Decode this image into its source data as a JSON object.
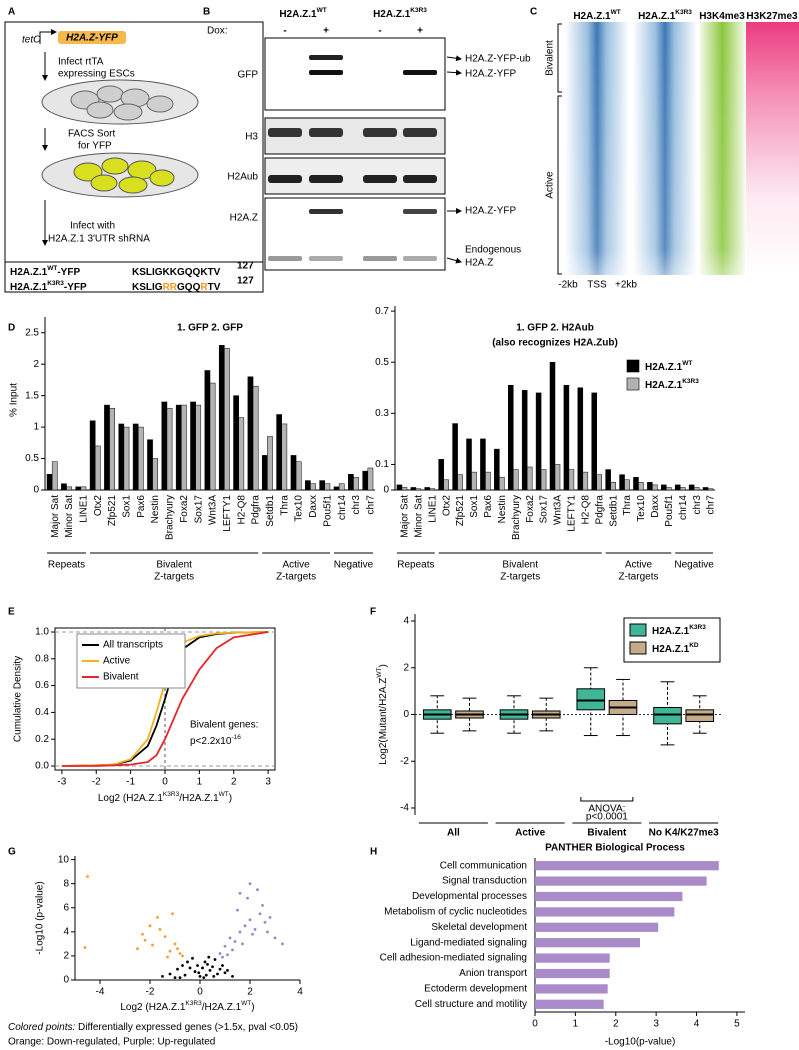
{
  "panel_labels": [
    "A",
    "B",
    "C",
    "D",
    "E",
    "F",
    "G",
    "H"
  ],
  "schematic": {
    "promoter": "tetO",
    "construct": "H2A.Z-YFP",
    "step1": [
      "Infect rtTA",
      "expressing ESCs"
    ],
    "step2": [
      "FACS Sort",
      "for YFP"
    ],
    "step3": [
      "Infect with",
      "H2A.Z.1 3'UTR shRNA"
    ],
    "seq_rows": [
      {
        "label": [
          "H2A.Z.1",
          "WT",
          "-YFP"
        ],
        "sequence": [
          "KSLIGKKGQQKTV"
        ],
        "position": 127
      },
      {
        "label": [
          "H2A.Z.1",
          "K3R3",
          "-YFP"
        ],
        "sequence": [
          "KSLIG",
          "RR",
          "GQQ",
          "R",
          "TV"
        ],
        "position": 127
      }
    ]
  },
  "blot": {
    "groups": [
      [
        "H2A.Z.1",
        "WT"
      ],
      [
        "H2A.Z.1",
        "K3R3"
      ]
    ],
    "dox_label": "Dox:",
    "dox": [
      "-",
      "+",
      "-",
      "+"
    ],
    "rows": [
      "GFP",
      "H3",
      "H2Aub",
      "H2A.Z"
    ],
    "band_labels": [
      "H2A.Z-YFP-ub",
      "H2A.Z-YFP",
      "H2A.Z-YFP",
      [
        "Endogenous",
        "H2A.Z"
      ]
    ]
  },
  "heatmap": {
    "columns": [
      [
        "H2A.Z.1",
        "WT"
      ],
      [
        "H2A.Z.1",
        "K3R3"
      ],
      [
        "H3K4me3"
      ],
      [
        "H3K27me3"
      ]
    ],
    "clusters": [
      "Bivalent",
      "Active"
    ],
    "axis": [
      "-2kb",
      "TSS",
      "+2kb"
    ]
  },
  "chart_data": [
    {
      "type": "bar",
      "title": "1. GFP 2. GFP",
      "ylabel": "% Input",
      "categories": [
        "Major Sat",
        "Minor Sat",
        "LINE1",
        "Otx2",
        "Zfp521",
        "Sox1",
        "Pax6",
        "Nestin",
        "Brachyury",
        "Foxa2",
        "Sox17",
        "Wnt3A",
        "LEFTY1",
        "H2-Q8",
        "Pdgfra",
        "Setdb1",
        "Thra",
        "Tex10",
        "Daxx",
        "Pou5f1",
        "chr14",
        "chr3",
        "chr7"
      ],
      "groups": [
        [
          "Repeats"
        ],
        [
          "Bivalent",
          "Z-targets"
        ],
        [
          "Active",
          "Z-targets"
        ],
        [
          "Negative"
        ]
      ],
      "series": [
        {
          "name": [
            "H2A.Z.1",
            "WT"
          ],
          "color": "#000000",
          "values": [
            0.25,
            0.1,
            0.05,
            1.1,
            1.35,
            1.05,
            1.05,
            0.8,
            1.4,
            1.35,
            1.4,
            1.9,
            2.3,
            1.5,
            1.8,
            0.55,
            1.2,
            0.55,
            0.15,
            0.15,
            0.05,
            0.25,
            0.3
          ]
        },
        {
          "name": [
            "H2A.Z.1",
            "K3R3"
          ],
          "color": "#b3b3b3",
          "values": [
            0.45,
            0.05,
            0.05,
            0.7,
            1.3,
            1.0,
            1.0,
            0.5,
            1.3,
            1.35,
            1.35,
            1.7,
            2.25,
            1.15,
            1.65,
            0.85,
            1.05,
            0.45,
            0.1,
            0.1,
            0.1,
            0.2,
            0.35
          ]
        }
      ],
      "ylim": [
        0,
        2.75
      ],
      "yticks": [
        0,
        0.5,
        1,
        1.5,
        2,
        2.5
      ]
    },
    {
      "type": "bar",
      "title": "1. GFP 2. H2Aub",
      "subtitle": "(also recognizes H2A.Zub)",
      "categories": [
        "Major Sat",
        "Minor Sat",
        "LINE1",
        "Otx2",
        "Zfp521",
        "Sox1",
        "Pax6",
        "Nestin",
        "Brachyury",
        "Foxa2",
        "Sox17",
        "Wnt3A",
        "LEFTY1",
        "H2-Q8",
        "Pdgfra",
        "Setdb1",
        "Thra",
        "Tex10",
        "Daxx",
        "Pou5f1",
        "chr14",
        "chr3",
        "chr7"
      ],
      "groups": [
        [
          "Repeats"
        ],
        [
          "Bivalent",
          "Z-targets"
        ],
        [
          "Active",
          "Z-targets"
        ],
        [
          "Negative"
        ]
      ],
      "series": [
        {
          "name": [
            "H2A.Z.1",
            "WT"
          ],
          "color": "#000000",
          "values": [
            0.02,
            0.01,
            0.01,
            0.12,
            0.26,
            0.2,
            0.2,
            0.16,
            0.41,
            0.39,
            0.38,
            0.5,
            0.41,
            0.4,
            0.38,
            0.08,
            0.06,
            0.05,
            0.03,
            0.02,
            0.02,
            0.02,
            0.01
          ]
        },
        {
          "name": [
            "H2A.Z.1",
            "K3R3"
          ],
          "color": "#b3b3b3",
          "values": [
            0.01,
            0.005,
            0.005,
            0.04,
            0.06,
            0.07,
            0.07,
            0.05,
            0.08,
            0.09,
            0.08,
            0.1,
            0.08,
            0.07,
            0.06,
            0.03,
            0.04,
            0.03,
            0.02,
            0.01,
            0.01,
            0.01,
            0.005
          ]
        }
      ],
      "ylim": [
        0,
        0.72
      ],
      "yticks": [
        0,
        0.1,
        0.3,
        0.5,
        0.7
      ],
      "legend": "upper right"
    },
    {
      "type": "line",
      "ylabel": "Cumulative Density",
      "xlabel": [
        "Log2 (H2A.Z.1",
        "K3R3",
        "/H2A.Z.1",
        "WT",
        ")"
      ],
      "annotation": "Bivalent genes:",
      "annotation_p": [
        "p<2.2x10",
        "-16"
      ],
      "x": [
        -3,
        -2,
        -1.5,
        -1,
        -0.5,
        -0.25,
        0,
        0.25,
        0.5,
        1,
        1.5,
        2,
        3
      ],
      "series": [
        {
          "name": "All transcripts",
          "color": "#000000",
          "values": [
            0,
            0.005,
            0.01,
            0.04,
            0.15,
            0.3,
            0.5,
            0.72,
            0.87,
            0.96,
            0.985,
            0.995,
            1
          ]
        },
        {
          "name": "Active",
          "color": "#f2b21b",
          "values": [
            0,
            0.005,
            0.01,
            0.05,
            0.2,
            0.4,
            0.62,
            0.82,
            0.92,
            0.97,
            0.99,
            0.995,
            1
          ]
        },
        {
          "name": "Bivalent",
          "color": "#e8262a",
          "values": [
            0,
            0,
            0.005,
            0.01,
            0.03,
            0.08,
            0.2,
            0.35,
            0.5,
            0.72,
            0.88,
            0.96,
            1
          ]
        }
      ],
      "xlim": [
        -3.2,
        3.2
      ],
      "xticks": [
        -3,
        -2,
        -1,
        0,
        1,
        2,
        3
      ],
      "ylim": [
        -0.03,
        1.03
      ],
      "yticks": [
        {
          "value": 0,
          "label": "0.0"
        },
        0.2,
        0.4,
        0.6,
        0.8,
        {
          "value": 1,
          "label": "1.0"
        }
      ],
      "legend": "upper left"
    },
    {
      "type": "box",
      "ylabel": [
        "Log2(Mutant/H2A.Z",
        "WT",
        ")"
      ],
      "categories": [
        "All",
        "Active",
        "Bivalent",
        "No K4/K27me3"
      ],
      "annotation": [
        "ANOVA:",
        "p<0.0001"
      ],
      "series": [
        {
          "name": [
            "H2A.Z.1",
            "K3R3"
          ],
          "color": "#41b597",
          "whisker_low": [
            -0.8,
            -0.8,
            -0.9,
            -1.3
          ],
          "q1": [
            -0.2,
            -0.2,
            0.2,
            -0.4
          ],
          "median": [
            0,
            0,
            0.6,
            0
          ],
          "q3": [
            0.2,
            0.2,
            1.1,
            0.3
          ],
          "whisker_high": [
            0.8,
            0.8,
            2.0,
            1.4
          ]
        },
        {
          "name": [
            "H2A.Z.1",
            "KD"
          ],
          "color": "#c6ab8a",
          "whisker_low": [
            -0.7,
            -0.7,
            -0.9,
            -0.8
          ],
          "q1": [
            -0.15,
            -0.15,
            0,
            -0.3
          ],
          "median": [
            0,
            0,
            0.3,
            0
          ],
          "q3": [
            0.15,
            0.15,
            0.6,
            0.2
          ],
          "whisker_high": [
            0.7,
            0.7,
            1.5,
            0.8
          ]
        }
      ],
      "ylim": [
        -4.3,
        4.3
      ],
      "yticks": [
        -4,
        -2,
        0,
        2,
        4
      ],
      "legend": "upper right"
    },
    {
      "type": "scatter",
      "ylabel": "-Log10 (p-value)",
      "xlabel": [
        "Log2 (H2A.Z.1",
        "K3R3",
        "/H2A.Z.1",
        "WT",
        ")"
      ],
      "caption": [
        "Colored points:",
        " Differentially expressed genes (>1.5x, pval <0.05)"
      ],
      "caption2": "Orange: Down-regulated, Purple: Up-regulated",
      "series": [
        {
          "color": "#000000",
          "x": [
            -1.2,
            -0.9,
            -0.7,
            -0.5,
            -0.3,
            -0.1,
            0,
            0.1,
            0.2,
            0.3,
            0.5,
            0.6,
            0.8,
            1.0,
            -0.6,
            -0.2,
            0.4,
            0.7,
            -1.5,
            1.3,
            -0.4,
            0.15,
            -0.05,
            0.9,
            -0.8,
            0.25,
            0.55,
            -1.0,
            1.1,
            0.35
          ],
          "values": [
            0.5,
            0.9,
            1.2,
            1.5,
            1.8,
            1.2,
            0.3,
            1.0,
            1.5,
            1.3,
            1.1,
            1.7,
            0.9,
            0.6,
            0.4,
            0.7,
            0.8,
            0.5,
            0.3,
            0.3,
            1.0,
            0.2,
            0.6,
            1.2,
            0.2,
            0.4,
            0.3,
            0.2,
            0.8,
            1.9
          ]
        },
        {
          "color": "#f0a030",
          "x": [
            -2.5,
            -2.2,
            -1.9,
            -1.6,
            -1.4,
            -1.2,
            -1.0,
            -0.8,
            -1.7,
            -2.0,
            -1.3,
            -0.9,
            -2.3,
            -1.1,
            -0.7,
            -4.6,
            -4.5
          ],
          "values": [
            2.6,
            3.3,
            2.9,
            4.2,
            3.6,
            2.4,
            3.0,
            2.2,
            5.2,
            4.5,
            1.9,
            2.6,
            3.8,
            5.5,
            2.0,
            2.7,
            8.6
          ]
        },
        {
          "color": "#8a8acf",
          "x": [
            0.8,
            1.0,
            1.2,
            1.4,
            1.6,
            1.8,
            2.0,
            2.2,
            2.4,
            2.6,
            0.9,
            1.3,
            1.7,
            2.1,
            2.5,
            1.1,
            1.5,
            1.9,
            2.3,
            2.8,
            3.0,
            1.6,
            2.0,
            3.3,
            2.7
          ],
          "values": [
            2.2,
            2.8,
            3.5,
            3.2,
            4.0,
            4.5,
            5.0,
            4.2,
            5.5,
            4.8,
            1.9,
            2.5,
            3.0,
            3.8,
            6.2,
            2.1,
            5.8,
            6.8,
            7.5,
            5.2,
            3.5,
            7.2,
            8.0,
            3.0,
            4.0
          ]
        }
      ],
      "xlim": [
        -5,
        4
      ],
      "xticks": [
        -4,
        -2,
        0,
        2,
        4
      ],
      "ylim": [
        0,
        10.3
      ],
      "yticks": [
        0,
        2,
        4,
        6,
        8,
        10
      ]
    },
    {
      "type": "hbar",
      "title": "PANTHER Biological Process",
      "xlabel": "-Log10(p-value)",
      "categories": [
        "Cell communication",
        "Signal transduction",
        "Developmental processes",
        "Metabolism of cyclic nucleotides",
        "Skeletal development",
        "Ligand-mediated signaling",
        "Cell adhesion-mediated signaling",
        "Anion transport",
        "Ectoderm development",
        "Cell structure and motility"
      ],
      "values": [
        4.55,
        4.25,
        3.65,
        3.45,
        3.05,
        2.6,
        1.85,
        1.85,
        1.8,
        1.7
      ],
      "color": "#a98bc9",
      "xlim": [
        0,
        5.2
      ],
      "xticks": [
        0,
        1,
        2,
        3,
        4,
        5
      ]
    }
  ]
}
